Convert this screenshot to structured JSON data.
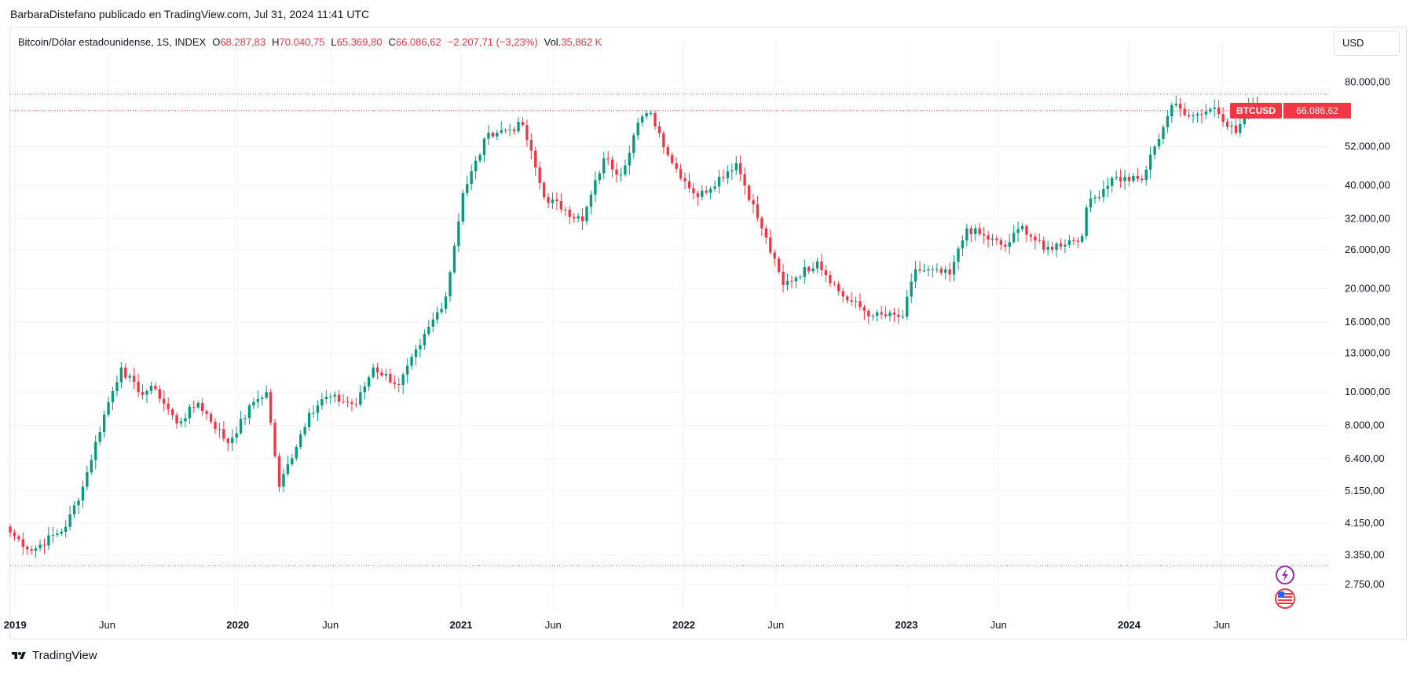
{
  "publisher_line": "BarbaraDistefano publicado en TradingView.com, Jul 31, 2024 11:41 UTC",
  "legend": {
    "title": "Bitcoin/Dólar estadounidense, 1S, INDEX",
    "open_label": "O",
    "open": "68.287,83",
    "high_label": "H",
    "high": "70.040,75",
    "low_label": "L",
    "low": "65.369,80",
    "close_label": "C",
    "close": "66.086,62",
    "change": "−2.207,71 (−3,23%)",
    "vol_label": "Vol.",
    "vol": "35,862 K"
  },
  "currency_button": "USD",
  "price_tag": {
    "symbol": "BTCUSD",
    "price": "66.086,62"
  },
  "footer_brand": "TradingView",
  "colors": {
    "up": "#089981",
    "down": "#f23645",
    "grid": "#f0f3fa",
    "text": "#131722"
  },
  "icons": [
    "lightning-icon",
    "us-flag-icon",
    "tradingview-logo-icon"
  ],
  "chart_data": {
    "type": "candlestick",
    "symbol": "BTCUSD",
    "interval": "1S",
    "y_scale": "log",
    "ylim": [
      2300,
      95000
    ],
    "y_ticks": [
      {
        "value": 80000,
        "label": "80.000,00"
      },
      {
        "value": 52000,
        "label": "52.000,00"
      },
      {
        "value": 40000,
        "label": "40.000,00"
      },
      {
        "value": 32000,
        "label": "32.000,00"
      },
      {
        "value": 26000,
        "label": "26.000,00"
      },
      {
        "value": 20000,
        "label": "20.000,00"
      },
      {
        "value": 16000,
        "label": "16.000,00"
      },
      {
        "value": 13000,
        "label": "13.000,00"
      },
      {
        "value": 10000,
        "label": "10.000,00"
      },
      {
        "value": 8000,
        "label": "8.000,00"
      },
      {
        "value": 6400,
        "label": "6.400,00"
      },
      {
        "value": 5150,
        "label": "5.150,00"
      },
      {
        "value": 4150,
        "label": "4.150,00"
      },
      {
        "value": 3350,
        "label": "3.350,00"
      },
      {
        "value": 2750,
        "label": "2.750,00"
      }
    ],
    "x_ticks": [
      {
        "date": "2019-01-01",
        "label": "2019",
        "bold": true
      },
      {
        "date": "2019-06-01",
        "label": "Jun",
        "bold": false
      },
      {
        "date": "2020-01-01",
        "label": "2020",
        "bold": true
      },
      {
        "date": "2020-06-01",
        "label": "Jun",
        "bold": false
      },
      {
        "date": "2021-01-01",
        "label": "2021",
        "bold": true
      },
      {
        "date": "2021-06-01",
        "label": "Jun",
        "bold": false
      },
      {
        "date": "2022-01-01",
        "label": "2022",
        "bold": true
      },
      {
        "date": "2022-06-01",
        "label": "Jun",
        "bold": false
      },
      {
        "date": "2023-01-01",
        "label": "2023",
        "bold": true
      },
      {
        "date": "2023-06-01",
        "label": "Jun",
        "bold": false
      },
      {
        "date": "2024-01-01",
        "label": "2024",
        "bold": true
      },
      {
        "date": "2024-06-01",
        "label": "Jun",
        "bold": false
      }
    ],
    "x_range": [
      "2018-12-24",
      "2024-11-25"
    ],
    "reference_lines": [
      {
        "value": 73800,
        "color": "#787b86",
        "style": "dotted"
      },
      {
        "value": 66086.62,
        "color": "#f23645",
        "style": "dotted"
      },
      {
        "value": 3122,
        "color": "#787b86",
        "style": "dotted"
      }
    ],
    "weekly_close_keypoints": [
      {
        "date": "2018-12-24",
        "close": 3900
      },
      {
        "date": "2019-01-28",
        "close": 3450
      },
      {
        "date": "2019-03-25",
        "close": 4050
      },
      {
        "date": "2019-04-22",
        "close": 5300
      },
      {
        "date": "2019-05-27",
        "close": 8600
      },
      {
        "date": "2019-06-24",
        "close": 11800
      },
      {
        "date": "2019-07-22",
        "close": 10000
      },
      {
        "date": "2019-08-19",
        "close": 10200
      },
      {
        "date": "2019-09-23",
        "close": 8100
      },
      {
        "date": "2019-10-28",
        "close": 9300
      },
      {
        "date": "2019-12-16",
        "close": 7100
      },
      {
        "date": "2020-01-27",
        "close": 9350
      },
      {
        "date": "2020-02-17",
        "close": 10000
      },
      {
        "date": "2020-03-09",
        "close": 5300
      },
      {
        "date": "2020-04-27",
        "close": 8700
      },
      {
        "date": "2020-05-25",
        "close": 9700
      },
      {
        "date": "2020-07-13",
        "close": 9200
      },
      {
        "date": "2020-08-10",
        "close": 11800
      },
      {
        "date": "2020-09-21",
        "close": 10500
      },
      {
        "date": "2020-10-26",
        "close": 13700
      },
      {
        "date": "2020-12-07",
        "close": 19000
      },
      {
        "date": "2021-01-04",
        "close": 38000
      },
      {
        "date": "2021-02-15",
        "close": 57000
      },
      {
        "date": "2021-03-15",
        "close": 58000
      },
      {
        "date": "2021-04-12",
        "close": 60000
      },
      {
        "date": "2021-05-17",
        "close": 37000
      },
      {
        "date": "2021-06-21",
        "close": 34000
      },
      {
        "date": "2021-07-19",
        "close": 31500
      },
      {
        "date": "2021-08-23",
        "close": 48000
      },
      {
        "date": "2021-09-20",
        "close": 43000
      },
      {
        "date": "2021-10-18",
        "close": 61000
      },
      {
        "date": "2021-11-08",
        "close": 65000
      },
      {
        "date": "2021-12-13",
        "close": 46500
      },
      {
        "date": "2022-01-24",
        "close": 37000
      },
      {
        "date": "2022-03-28",
        "close": 46500
      },
      {
        "date": "2022-05-09",
        "close": 30000
      },
      {
        "date": "2022-06-13",
        "close": 20500
      },
      {
        "date": "2022-08-08",
        "close": 24000
      },
      {
        "date": "2022-09-19",
        "close": 19000
      },
      {
        "date": "2022-11-07",
        "close": 16700
      },
      {
        "date": "2022-12-26",
        "close": 16600
      },
      {
        "date": "2023-01-16",
        "close": 22800
      },
      {
        "date": "2023-03-13",
        "close": 22000
      },
      {
        "date": "2023-04-10",
        "close": 30000
      },
      {
        "date": "2023-06-12",
        "close": 26500
      },
      {
        "date": "2023-07-10",
        "close": 30500
      },
      {
        "date": "2023-08-14",
        "close": 26000
      },
      {
        "date": "2023-10-16",
        "close": 28500
      },
      {
        "date": "2023-10-23",
        "close": 34500
      },
      {
        "date": "2023-12-04",
        "close": 42000
      },
      {
        "date": "2024-01-22",
        "close": 41500
      },
      {
        "date": "2024-02-12",
        "close": 52000
      },
      {
        "date": "2024-03-11",
        "close": 68500
      },
      {
        "date": "2024-04-15",
        "close": 64000
      },
      {
        "date": "2024-05-20",
        "close": 67500
      },
      {
        "date": "2024-06-24",
        "close": 57000
      },
      {
        "date": "2024-07-15",
        "close": 68287.83
      },
      {
        "date": "2024-07-29",
        "close": 66086.62
      }
    ]
  }
}
